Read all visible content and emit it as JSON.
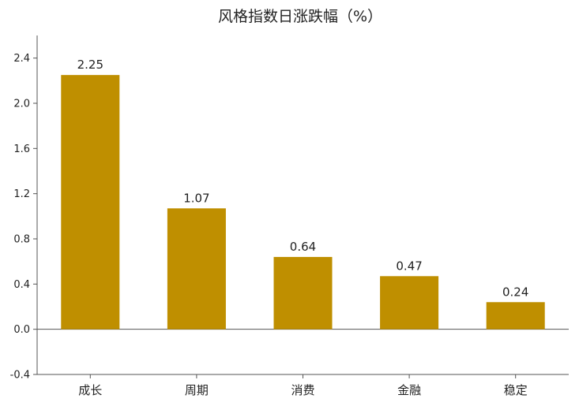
{
  "chart_data": {
    "type": "bar",
    "title": "风格指数日涨跌幅（%）",
    "xlabel": "",
    "ylabel": "",
    "categories": [
      "成长",
      "周期",
      "消费",
      "金融",
      "稳定"
    ],
    "values": [
      2.25,
      1.07,
      0.64,
      0.47,
      0.24
    ],
    "data_labels": [
      "2.25",
      "1.07",
      "0.64",
      "0.47",
      "0.24"
    ],
    "ylim": [
      -0.4,
      2.6
    ],
    "yticks": [
      -0.4,
      0.0,
      0.4,
      0.8,
      1.2,
      1.6,
      2.0,
      2.4
    ],
    "ytick_labels": [
      "-0.4",
      "0.0",
      "0.4",
      "0.8",
      "1.2",
      "1.6",
      "2.0",
      "2.4"
    ],
    "grid": false,
    "legend": "none",
    "bar_color": "#BF8F00"
  }
}
